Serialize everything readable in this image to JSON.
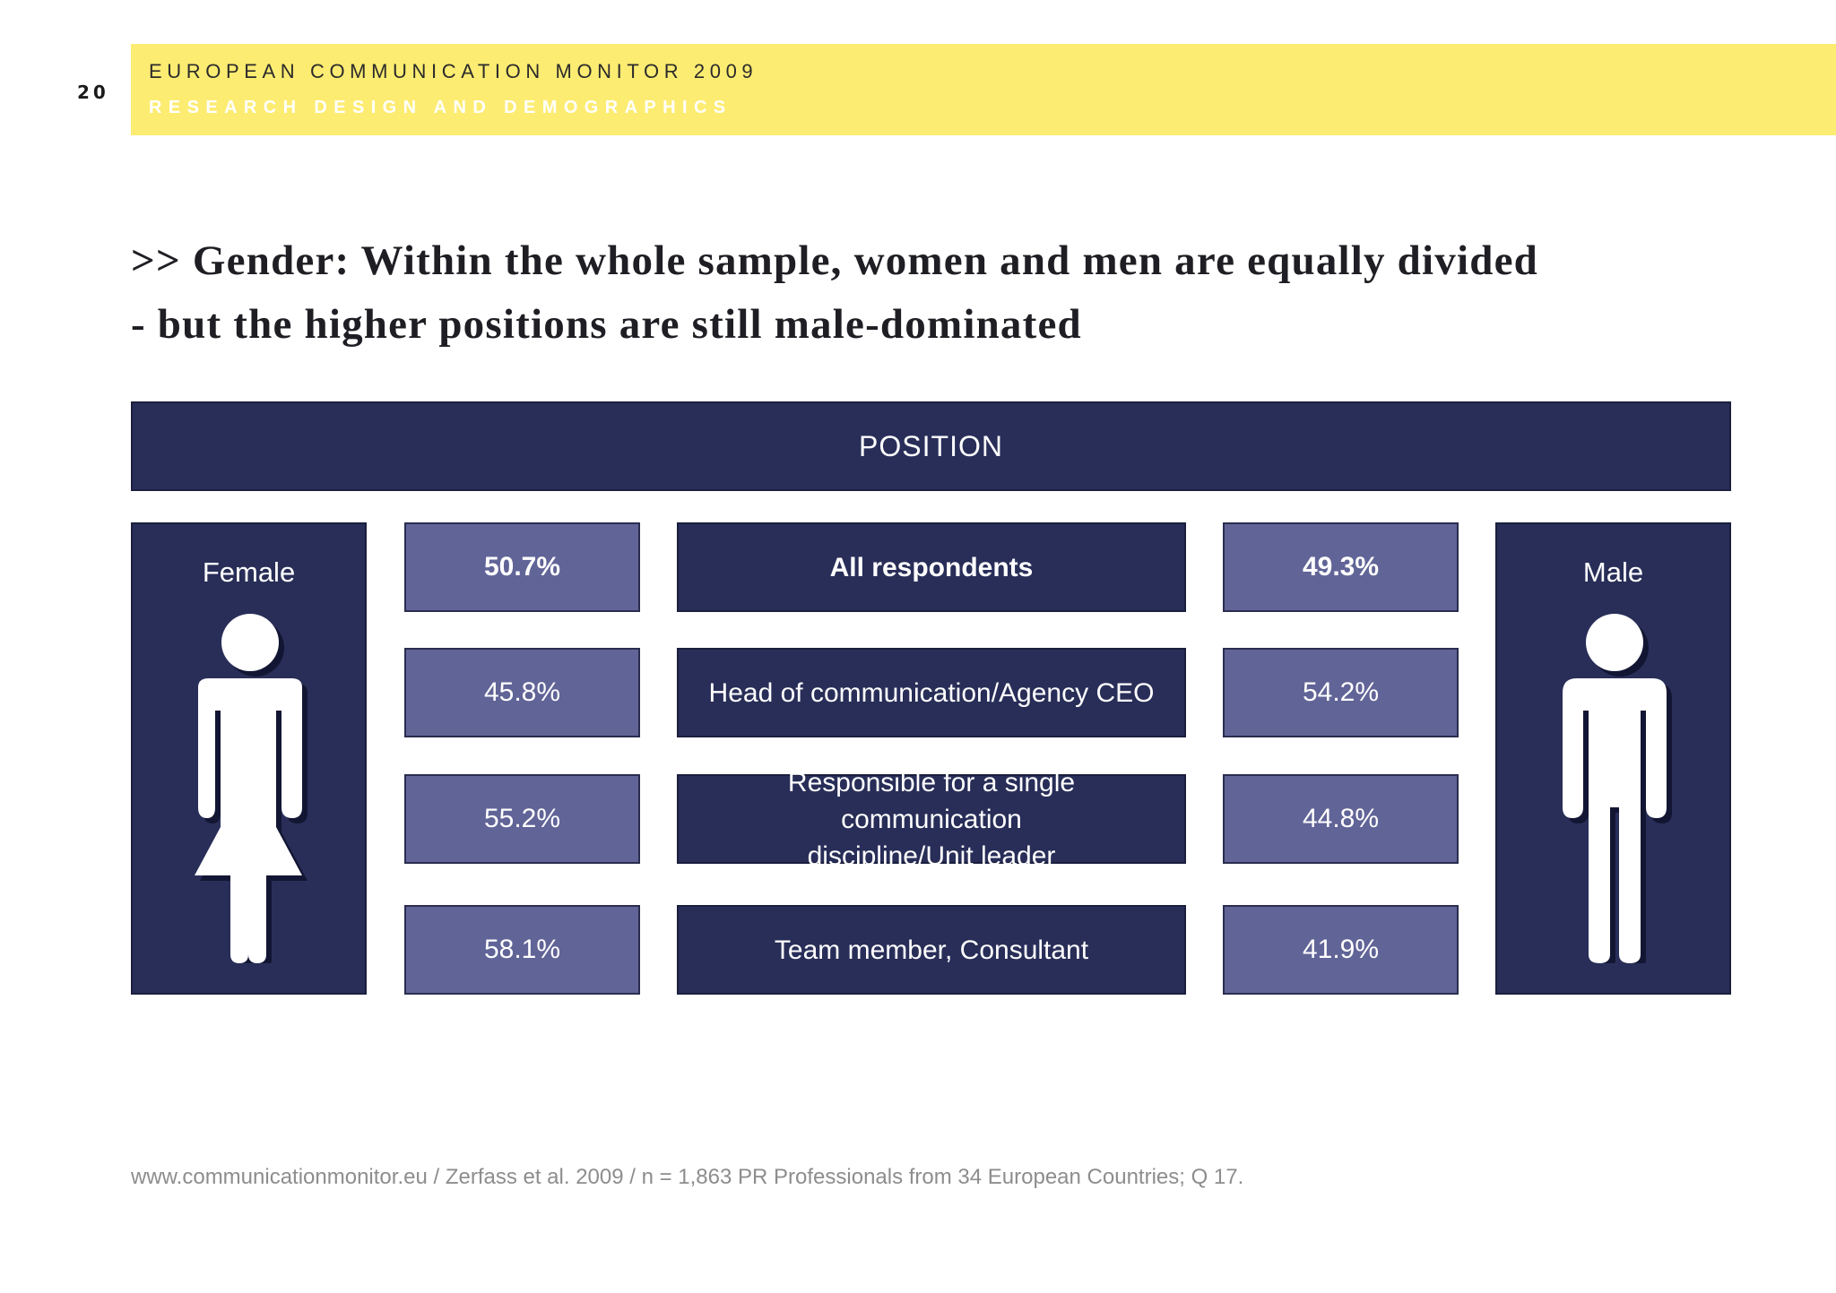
{
  "header": {
    "page_number": "20",
    "report_title": "EUROPEAN COMMUNICATION MONITOR 2009",
    "section_title": "RESEARCH DESIGN AND DEMOGRAPHICS"
  },
  "headline": {
    "line1": ">> Gender: Within the whole sample, women and men are equally divided",
    "line2": "- but the higher positions are still male-dominated"
  },
  "table": {
    "column_header": "POSITION",
    "female_label": "Female",
    "male_label": "Male",
    "female_icon": "female-figure-icon",
    "male_icon": "male-figure-icon",
    "rows": [
      {
        "category": "All respondents",
        "female": "50.7%",
        "male": "49.3%",
        "bold": true
      },
      {
        "category": "Head of communication/Agency CEO",
        "female": "45.8%",
        "male": "54.2%",
        "bold": false
      },
      {
        "category_line1": "Responsible for a single communication",
        "category_line2": "discipline/Unit leader",
        "female": "55.2%",
        "male": "44.8%",
        "bold": false
      },
      {
        "category": "Team member, Consultant",
        "female": "58.1%",
        "male": "41.9%",
        "bold": false
      }
    ]
  },
  "colors": {
    "header_band": "#fdec72",
    "dark_box": "#282e58",
    "light_box": "#616497"
  },
  "footer": {
    "source": "www.communicationmonitor.eu / Zerfass et al. 2009 / n = 1,863 PR Professionals from 34 European Countries; Q 17."
  }
}
